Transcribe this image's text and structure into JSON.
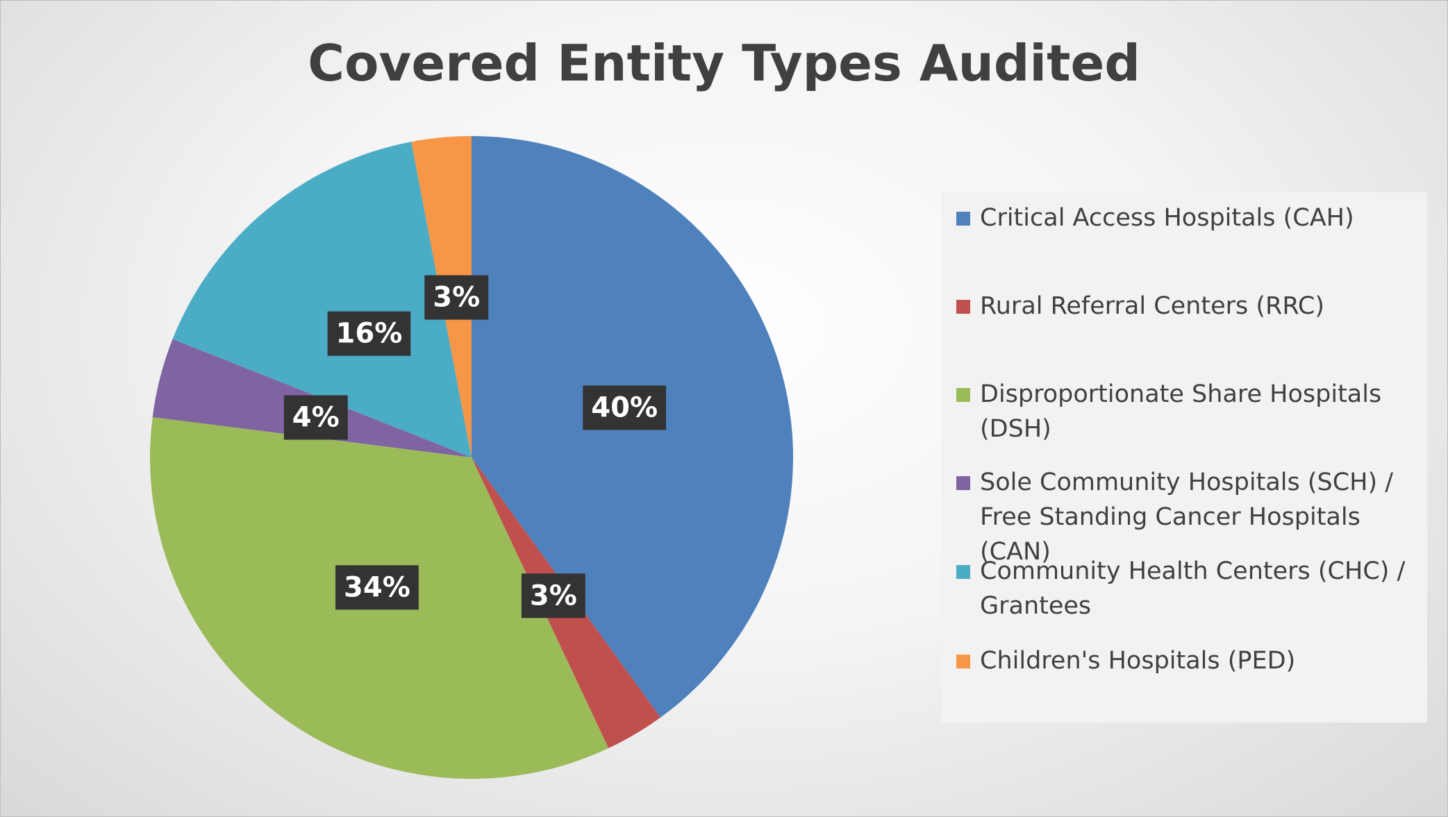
{
  "chart_data": {
    "type": "pie",
    "title": "Covered Entity Types Audited",
    "categories": [
      "Critical Access Hospitals (CAH)",
      "Rural Referral Centers (RRC)",
      "Disproportionate Share Hospitals (DSH)",
      "Sole Community Hospitals (SCH) / Free Standing Cancer Hospitals (CAN)",
      "Community Health Centers (CHC) / Grantees",
      "Children's Hospitals (PED)"
    ],
    "values": [
      40,
      3,
      34,
      4,
      16,
      3
    ],
    "value_labels": [
      "40%",
      "3%",
      "34%",
      "4%",
      "16%",
      "3%"
    ],
    "colors": [
      "#4f81bd",
      "#c0504d",
      "#9bbb59",
      "#8064a2",
      "#4bacc6",
      "#f79646"
    ],
    "legend": "right"
  }
}
